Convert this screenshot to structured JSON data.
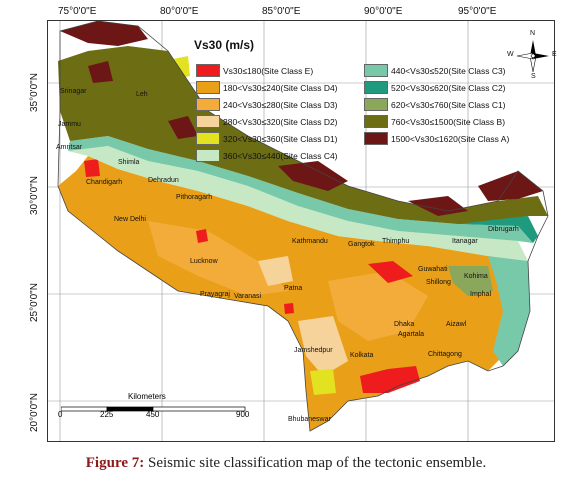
{
  "map": {
    "lon_labels": [
      "75°0'0\"E",
      "80°0'0\"E",
      "85°0'0\"E",
      "90°0'0\"E",
      "95°0'0\"E"
    ],
    "lat_labels": [
      "35°0'0\"N",
      "30°0'0\"N",
      "25°0'0\"N",
      "20°0'0\"N"
    ],
    "legend_title": "Vs30 (m/s)",
    "legend": [
      {
        "label": "Vs30≤180(Site Class E)",
        "color": "#ee1c1c"
      },
      {
        "label": "180<Vs30≤240(Site Class D4)",
        "color": "#e9a018"
      },
      {
        "label": "240<Vs30≤280(Site Class D3)",
        "color": "#f3ab3a"
      },
      {
        "label": "280<Vs30≤320(Site Class D2)",
        "color": "#f7d39c"
      },
      {
        "label": "320<Vs30≤360(Site Class D1)",
        "color": "#e2e220"
      },
      {
        "label": "360<Vs30≤440(Site Class C4)",
        "color": "#c6e8c4"
      },
      {
        "label": "440<Vs30≤520(Site Class C3)",
        "color": "#78c8aa"
      },
      {
        "label": "520<Vs30≤620(Site Class C2)",
        "color": "#1e9a7e"
      },
      {
        "label": "620<Vs30≤760(Site Class C1)",
        "color": "#8aa75c"
      },
      {
        "label": "760<Vs30≤1500(Site Class B)",
        "color": "#6d6e14"
      },
      {
        "label": "1500<Vs30≤1620(Site Class A)",
        "color": "#6d1616"
      }
    ],
    "cities": [
      "Srinagar",
      "Leh",
      "Jammu",
      "Amritsar",
      "Shimla",
      "Chandigarh",
      "Dehradun",
      "Pithoragarh",
      "New Delhi",
      "Lucknow",
      "Prayagraj",
      "Varanasi",
      "Patna",
      "Kathmandu",
      "Gangtok",
      "Thimphu",
      "Itanagar",
      "Dibrugarh",
      "Guwahati",
      "Kohima",
      "Shillong",
      "Imphal",
      "Aizawl",
      "Dhaka",
      "Agartala",
      "Chittagong",
      "Jamshedpur",
      "Kolkata",
      "Bhubaneswar"
    ],
    "scale": {
      "title": "Kilometers",
      "ticks": [
        "0",
        "225",
        "450",
        "900"
      ]
    },
    "compass": {
      "n": "N",
      "s": "S",
      "e": "E",
      "w": "W"
    }
  },
  "caption": {
    "label": "Figure 7:",
    "text": " Seismic site classification map of the tectonic ensemble."
  }
}
